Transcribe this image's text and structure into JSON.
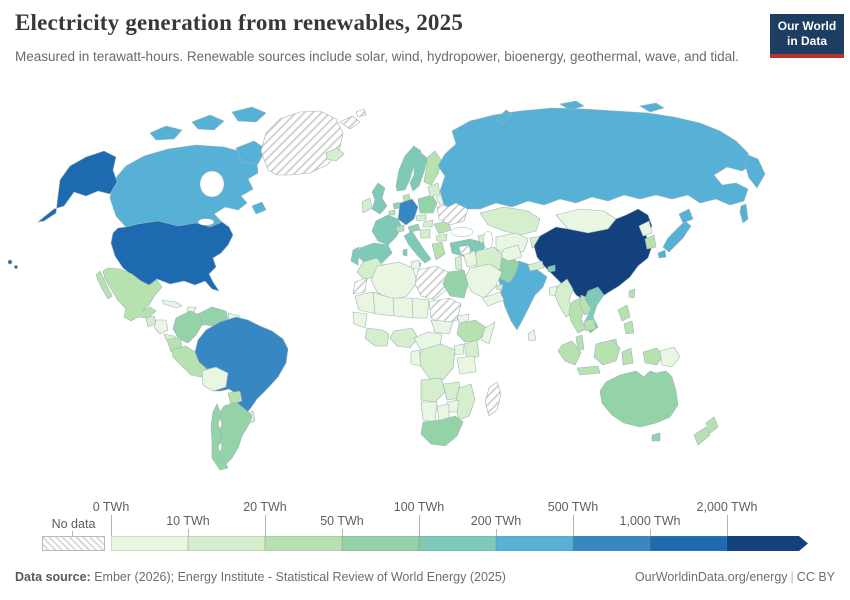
{
  "header": {
    "title": "Electricity generation from renewables, 2025",
    "subtitle": "Measured in terawatt-hours. Renewable sources include solar, wind, hydropower, bioenergy, geothermal, wave, and tidal.",
    "logo": {
      "line1": "Our World",
      "line2": "in Data",
      "bg_color": "#1d3d63",
      "accent_color": "#b5342e"
    }
  },
  "legend": {
    "no_data_label": "No data",
    "ticks": [
      {
        "label": "0 TWh",
        "row": "top"
      },
      {
        "label": "10 TWh",
        "row": "bottom"
      },
      {
        "label": "20 TWh",
        "row": "top"
      },
      {
        "label": "50 TWh",
        "row": "bottom"
      },
      {
        "label": "100 TWh",
        "row": "top"
      },
      {
        "label": "200 TWh",
        "row": "bottom"
      },
      {
        "label": "500 TWh",
        "row": "top"
      },
      {
        "label": "1,000 TWh",
        "row": "bottom"
      },
      {
        "label": "2,000 TWh",
        "row": "top"
      }
    ]
  },
  "footer": {
    "source_label": "Data source:",
    "source_text": " Ember (2026); Energy Institute - Statistical Review of World Energy (2025)",
    "link_text": "OurWorldinData.org/energy",
    "license_text": "CC BY"
  },
  "chart_data": {
    "type": "choropleth",
    "title": "Electricity generation from renewables, 2025",
    "unit": "TWh",
    "legend_position": "bottom",
    "bands": [
      "0-10",
      "10-20",
      "20-50",
      "50-100",
      "100-200",
      "200-500",
      "500-1000",
      "1000-2000",
      "2000+"
    ],
    "colors": [
      "#e9f6e1",
      "#d5eecb",
      "#b7e2b0",
      "#94d3a7",
      "#7ecab7",
      "#57b1d6",
      "#3787c3",
      "#1d6ab0",
      "#12417d"
    ],
    "no_data_color": "hatch",
    "border_color": "#9db3ba",
    "countries": {
      "usa": "1000-2000",
      "canada": "200-500",
      "mexico": "20-50",
      "guatemala": "10-20",
      "honduras-nicaragua": "0-10",
      "costa-rica-panama": "10-20",
      "cuba": "0-10",
      "hispaniola": "0-10",
      "colombia": "50-100",
      "venezuela": "50-100",
      "guyana-suriname": "0-10",
      "ecuador": "20-50",
      "peru": "20-50",
      "bolivia": "0-10",
      "brazil": "500-1000",
      "paraguay": "20-50",
      "uruguay": "10-20",
      "argentina": "50-100",
      "chile": "50-100",
      "greenland": "no-data",
      "iceland": "10-20",
      "norway": "100-200",
      "sweden": "100-200",
      "finland": "20-50",
      "denmark": "20-50",
      "uk": "100-200",
      "ireland": "10-20",
      "netherlands": "50-100",
      "belgium": "20-50",
      "france": "100-200",
      "germany": "500-1000",
      "switzerland": "20-50",
      "austria": "50-100",
      "czechia": "10-20",
      "poland": "50-100",
      "spain": "100-200",
      "portugal": "100-200",
      "italy": "100-200",
      "hungary": "10-20",
      "balkans": "10-20",
      "romania": "20-50",
      "bulgaria": "10-20",
      "greece": "20-50",
      "ukraine": "no-data",
      "belarus": "0-10",
      "baltics": "10-20",
      "turkey": "100-200",
      "caucasus": "10-20",
      "svalbard": "no-data",
      "russia": "200-500",
      "kazakhstan": "10-20",
      "central-asia": "0-10",
      "kyrgyz-tajik": "10-20",
      "mongolia": "0-10",
      "china": "2000+",
      "taiwan": "20-50",
      "india": "200-500",
      "pakistan": "50-100",
      "afghanistan": "0-10",
      "nepal": "10-20",
      "bhutan": "100-200",
      "bangladesh": "0-10",
      "sri-lanka": "0-10",
      "myanmar": "10-20",
      "thailand": "20-50",
      "laos": "20-50",
      "vietnam": "100-200",
      "cambodia": "20-50",
      "malaysia": "20-50",
      "indonesia": "20-50",
      "papua-new-guinea": "0-10",
      "philippines": "20-50",
      "japan": "200-500",
      "south-korea": "20-50",
      "north-korea": "0-10",
      "iran": "10-20",
      "iraq": "0-10",
      "syria": "no-data",
      "saudi-arabia": "0-10",
      "yemen-oman": "0-10",
      "israel-jordan": "10-20",
      "uae": "10-20",
      "morocco": "10-20",
      "western-sahara": "no-data",
      "algeria": "0-10",
      "tunisia": "0-10",
      "libya": "no-data",
      "egypt": "50-100",
      "sahel": "0-10",
      "senegal-guinea": "0-10",
      "west-africa-coast": "10-20",
      "nigeria": "10-20",
      "cameroon-car": "0-10",
      "sudan": "no-data",
      "south-sudan": "0-10",
      "eritrea": "0-10",
      "ethiopia": "20-50",
      "somalia": "0-10",
      "kenya": "10-20",
      "uganda": "0-10",
      "tanzania": "0-10",
      "drc": "10-20",
      "congo-gabon": "0-10",
      "angola": "10-20",
      "zambia": "10-20",
      "mozambique": "10-20",
      "zimbabwe": "0-10",
      "namibia": "0-10",
      "botswana": "0-10",
      "south-africa": "50-100",
      "madagascar": "no-data",
      "australia": "50-100",
      "new-zealand": "20-50"
    }
  }
}
